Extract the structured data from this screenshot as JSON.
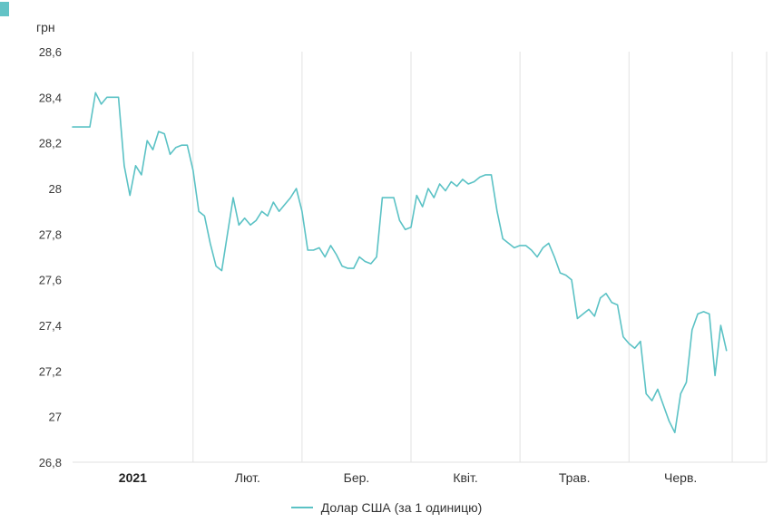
{
  "chart_data": {
    "type": "line",
    "title": "",
    "unit_label": "грн",
    "legend_position": "bottom",
    "grid": "vertical-only",
    "grid_color": "#e2e2e2",
    "axis_text_color": "#3a3a3a",
    "y_axis": {
      "min": 26.8,
      "max": 28.6,
      "step": 0.2,
      "tick_labels": [
        "28,6",
        "28,4",
        "28,2",
        "28",
        "27,8",
        "27,6",
        "27,4",
        "27,2",
        "27",
        "26,8"
      ]
    },
    "months": [
      {
        "label": "2021",
        "points": 21,
        "bold": true
      },
      {
        "label": "Лют.",
        "points": 19,
        "bold": false
      },
      {
        "label": "Бер.",
        "points": 19,
        "bold": false
      },
      {
        "label": "Квіт.",
        "points": 19,
        "bold": false
      },
      {
        "label": "Трав.",
        "points": 19,
        "bold": false
      },
      {
        "label": "Черв.",
        "points": 18,
        "bold": false
      }
    ],
    "tail_points": 7,
    "series": [
      {
        "name": "Долар США (за 1 одиницю)",
        "color": "#5bc2c5",
        "values": [
          28.27,
          28.27,
          28.27,
          28.27,
          28.42,
          28.37,
          28.4,
          28.4,
          28.4,
          28.1,
          27.97,
          28.1,
          28.06,
          28.21,
          28.17,
          28.25,
          28.24,
          28.15,
          28.18,
          28.19,
          28.19,
          28.08,
          27.9,
          27.88,
          27.76,
          27.66,
          27.64,
          27.8,
          27.96,
          27.84,
          27.87,
          27.84,
          27.86,
          27.9,
          27.88,
          27.94,
          27.9,
          27.93,
          27.96,
          28.0,
          27.9,
          27.73,
          27.73,
          27.74,
          27.7,
          27.75,
          27.71,
          27.66,
          27.65,
          27.65,
          27.7,
          27.68,
          27.67,
          27.7,
          27.96,
          27.96,
          27.96,
          27.86,
          27.82,
          27.83,
          27.97,
          27.92,
          28.0,
          27.96,
          28.02,
          27.99,
          28.03,
          28.01,
          28.04,
          28.02,
          28.03,
          28.05,
          28.06,
          28.06,
          27.9,
          27.78,
          27.76,
          27.74,
          27.75,
          27.75,
          27.73,
          27.7,
          27.74,
          27.76,
          27.7,
          27.63,
          27.62,
          27.6,
          27.43,
          27.45,
          27.47,
          27.44,
          27.52,
          27.54,
          27.5,
          27.49,
          27.35,
          27.32,
          27.3,
          27.33,
          27.1,
          27.07,
          27.12,
          27.05,
          26.98,
          26.93,
          27.1,
          27.15,
          27.38,
          27.45,
          27.46,
          27.45,
          27.18,
          27.4,
          27.29
        ]
      }
    ]
  },
  "legend": {
    "label": "Долар США (за 1 одиницю)"
  }
}
